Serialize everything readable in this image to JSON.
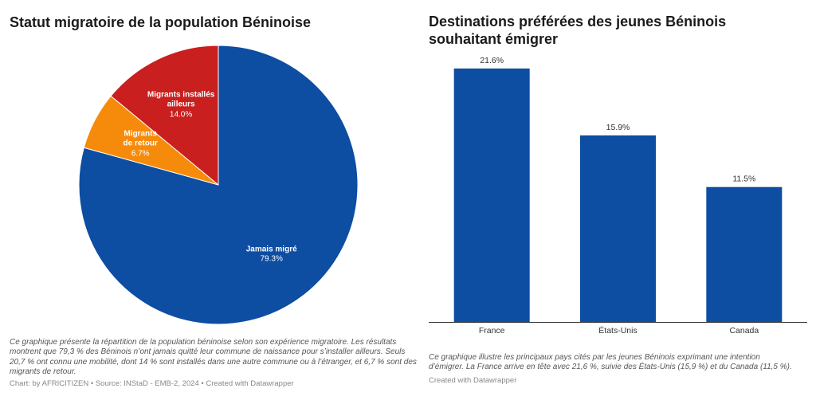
{
  "chart_data": [
    {
      "type": "pie",
      "title": "Statut migratoire de la population Béninoise",
      "labels": [
        "Jamais migré",
        "Migrants de retour",
        "Migrants installés ailleurs"
      ],
      "values": [
        79.3,
        6.7,
        14.0
      ],
      "value_labels": [
        "79.3%",
        "6.7%",
        "14.0%"
      ],
      "colors": [
        "#0d4da2",
        "#f68b0b",
        "#c91f1f"
      ],
      "description_lines": [
        "Ce graphique présente la répartition de la population béninoise selon son expérience migratoire. Les résultats",
        "montrent que 79,3 % des Béninois n’ont jamais quitté leur commune de naissance pour s’installer ailleurs. Seuls",
        "20,7 % ont connu une mobilité, dont 14 % sont installés dans une autre commune ou à l’étranger, et 6,7 % sont des",
        "migrants de retour."
      ],
      "credits": "Chart: by AFRICITIZEN • Source: INStaD - EMB-2, 2024 • Created with Datawrapper"
    },
    {
      "type": "bar",
      "title": "Destinations préférées des jeunes Béninois souhaitant émigrer",
      "categories": [
        "France",
        "États-Unis",
        "Canada"
      ],
      "values": [
        21.6,
        15.9,
        11.5
      ],
      "value_labels": [
        "21.6%",
        "15.9%",
        "11.5%"
      ],
      "color": "#0d4da2",
      "xlabel": "",
      "ylabel": "",
      "ylim": [
        0,
        21.6
      ],
      "grid": false,
      "description_lines": [
        "Ce graphique illustre les principaux pays cités par les jeunes Béninois exprimant une intention",
        "d’émigrer. La France arrive en tête avec 21,6 %, suivie des États-Unis (15,9 %) et du Canada (11,5 %)."
      ],
      "credits": "Created with Datawrapper"
    }
  ]
}
